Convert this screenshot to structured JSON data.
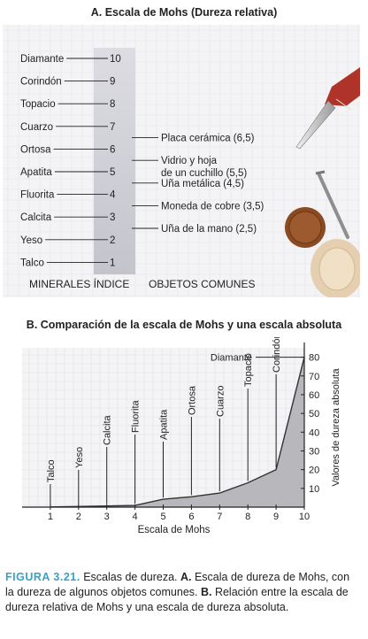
{
  "panel_a": {
    "title": "A. Escala de Mohs (Dureza relativa)",
    "minerals": [
      {
        "name": "Diamante",
        "value": "10"
      },
      {
        "name": "Corindón",
        "value": "9"
      },
      {
        "name": "Topacio",
        "value": "8"
      },
      {
        "name": "Cuarzo",
        "value": "7"
      },
      {
        "name": "Ortosa",
        "value": "6"
      },
      {
        "name": "Apatita",
        "value": "5"
      },
      {
        "name": "Fluorita",
        "value": "4"
      },
      {
        "name": "Calcita",
        "value": "3"
      },
      {
        "name": "Yeso",
        "value": "2"
      },
      {
        "name": "Talco",
        "value": "1"
      }
    ],
    "objects": [
      {
        "label": "Placa cerámica (6,5)",
        "hardness": 6.5
      },
      {
        "label": "Vidrio y hoja",
        "label2": "de un cuchillo (5,5)",
        "hardness": 5.5
      },
      {
        "label": "Uña metálica (4,5)",
        "hardness": 4.5
      },
      {
        "label": "Moneda de cobre (3,5)",
        "hardness": 3.5
      },
      {
        "label": "Uña de la mano (2,5)",
        "hardness": 2.5
      }
    ],
    "footer_left": "MINERALES ÍNDICE",
    "footer_right": "OBJETOS COMUNES"
  },
  "panel_b": {
    "title": "B. Comparación de la escala de Mohs y una escala absoluta"
  },
  "chart_data": {
    "type": "area",
    "x": [
      1,
      2,
      3,
      4,
      5,
      6,
      7,
      8,
      9,
      10
    ],
    "categories": [
      "Talco",
      "Yeso",
      "Calcita",
      "Fluorita",
      "Apatita",
      "Ortosa",
      "Cuarzo",
      "Topacio",
      "Corindón",
      "Diamante"
    ],
    "values": [
      0.1,
      0.3,
      0.6,
      0.9,
      4.2,
      5.5,
      7.5,
      13,
      20,
      80
    ],
    "xlabel": "Escala de Mohs",
    "ylabel": "Valores de dureza absoluta",
    "xlim": [
      0,
      10
    ],
    "ylim": [
      0,
      85
    ],
    "xticks": [
      "1",
      "2",
      "3",
      "4",
      "5",
      "6",
      "7",
      "8",
      "9",
      "10"
    ],
    "yticks": [
      "10",
      "20",
      "30",
      "40",
      "50",
      "60",
      "70",
      "80"
    ],
    "grid": true,
    "color": "#b8b8bc"
  },
  "caption": {
    "figure": "FIGURA 3.21.",
    "text1": " Escalas de dureza. ",
    "a": "A.",
    "text2": " Escala de dureza de Mohs, con la dureza de algunos objetos comunes. ",
    "b": "B.",
    "text3": " Relación entre la escala de dureza relativa de Mohs y una escala de dureza absoluta."
  }
}
